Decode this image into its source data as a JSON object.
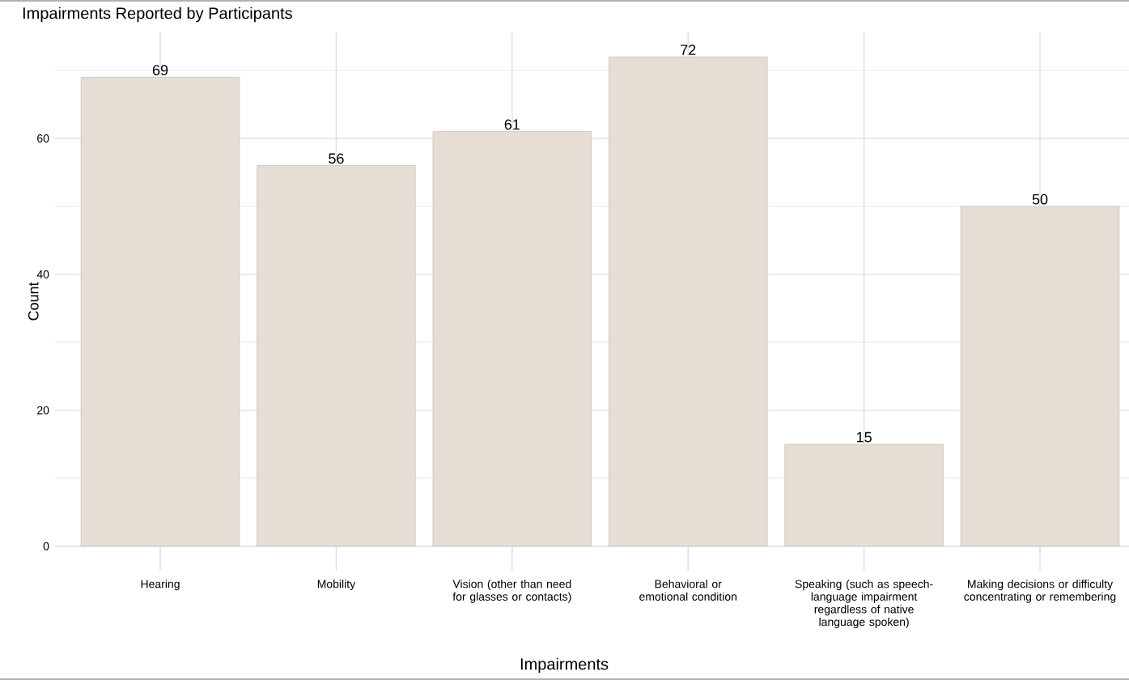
{
  "chart_data": {
    "type": "bar",
    "title": "Impairments Reported by Participants",
    "xlabel": "Impairments",
    "ylabel": "Count",
    "categories": [
      "Hearing",
      "Mobility",
      "Vision (other than need for glasses or contacts)",
      "Behavioral or emotional condition",
      "Speaking (such as speech-language impairment regardless of native language spoken)",
      "Making decisions or difficulty concentrating or remembering"
    ],
    "values": [
      69,
      56,
      61,
      72,
      15,
      50
    ],
    "color": "#e6ddd4",
    "ylim": [
      -3.6,
      75.6
    ],
    "yticks": [
      0,
      20,
      40,
      60
    ],
    "grid": true,
    "data_labels": true
  }
}
